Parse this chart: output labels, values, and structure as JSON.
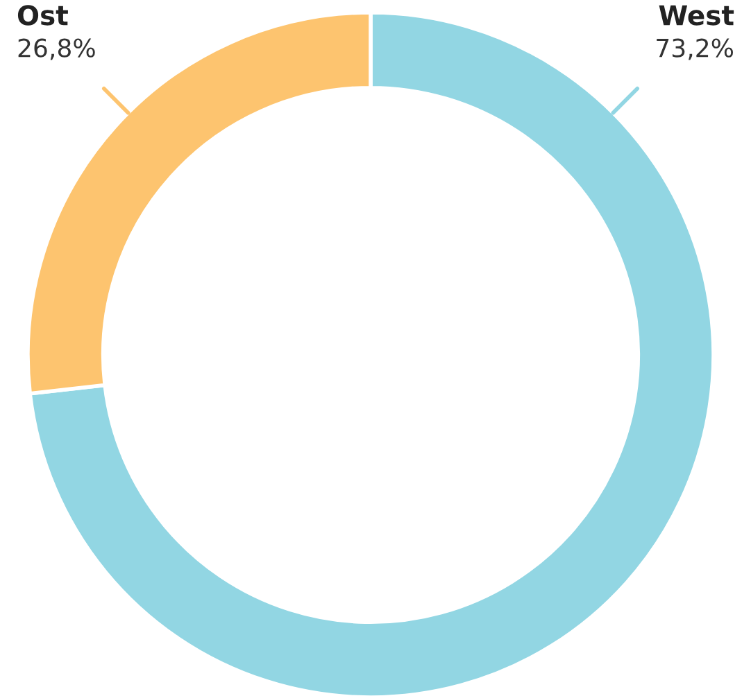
{
  "chart_data": {
    "type": "donut",
    "categories": [
      "West",
      "Ost"
    ],
    "values": [
      73.2,
      26.8
    ],
    "value_labels": [
      "73,2%",
      "26,8%"
    ],
    "colors": [
      "#92d6e3",
      "#fdc46f"
    ],
    "legend": false
  }
}
